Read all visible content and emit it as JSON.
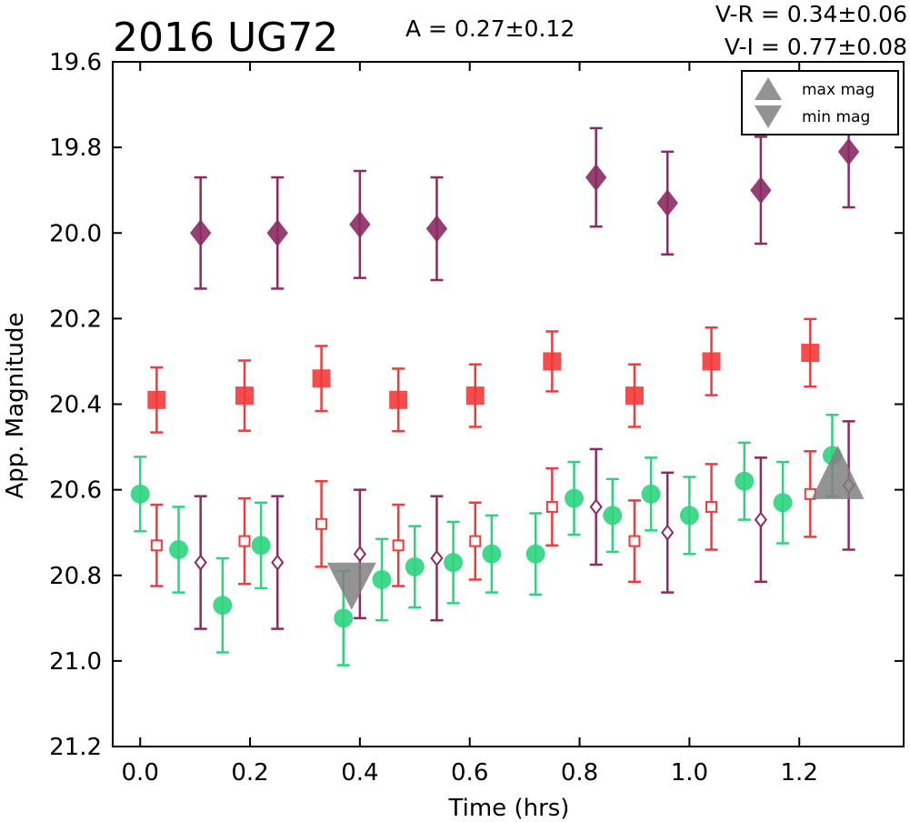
{
  "chart_data": {
    "type": "scatter",
    "title": "2016 UG72",
    "amplitude_text": "A  = 0.27±0.12",
    "color_index_lines": [
      "V-R = 0.34±0.06",
      "V-I  = 0.77±0.08"
    ],
    "xlabel": "Time (hrs)",
    "ylabel": "App. Magnitude",
    "xlim": [
      -0.05,
      1.39
    ],
    "ylim": [
      19.6,
      21.2
    ],
    "y_inverted": true,
    "xticks": [
      "0.0",
      "0.2",
      "0.4",
      "0.6",
      "0.8",
      "1.0",
      "1.2"
    ],
    "yticks": [
      "19.6",
      "19.8",
      "20.0",
      "20.2",
      "20.4",
      "20.6",
      "20.8",
      "21.0",
      "21.2"
    ],
    "grid": false,
    "legend": {
      "position": "top-right",
      "entries": [
        {
          "label": "max mag",
          "marker": "triangle-up",
          "color": "#808080"
        },
        {
          "label": "min mag",
          "marker": "triangle-down",
          "color": "#808080"
        }
      ]
    },
    "series": [
      {
        "marker": "square",
        "filled": true,
        "color": "#f23a3a",
        "points": [
          {
            "x": 0.03,
            "y": 20.39,
            "err": 0.076
          },
          {
            "x": 0.19,
            "y": 20.38,
            "err": 0.082
          },
          {
            "x": 0.33,
            "y": 20.34,
            "err": 0.076
          },
          {
            "x": 0.47,
            "y": 20.39,
            "err": 0.073
          },
          {
            "x": 0.61,
            "y": 20.38,
            "err": 0.073
          },
          {
            "x": 0.75,
            "y": 20.3,
            "err": 0.07
          },
          {
            "x": 0.9,
            "y": 20.38,
            "err": 0.073
          },
          {
            "x": 1.04,
            "y": 20.3,
            "err": 0.079
          },
          {
            "x": 1.22,
            "y": 20.28,
            "err": 0.079
          }
        ]
      },
      {
        "marker": "diamond",
        "filled": true,
        "color": "#8b2a63",
        "points": [
          {
            "x": 0.11,
            "y": 20.0,
            "err": 0.13
          },
          {
            "x": 0.25,
            "y": 20.0,
            "err": 0.13
          },
          {
            "x": 0.4,
            "y": 19.98,
            "err": 0.125
          },
          {
            "x": 0.54,
            "y": 19.99,
            "err": 0.12
          },
          {
            "x": 0.83,
            "y": 19.87,
            "err": 0.115
          },
          {
            "x": 0.96,
            "y": 19.93,
            "err": 0.12
          },
          {
            "x": 1.13,
            "y": 19.9,
            "err": 0.125
          },
          {
            "x": 1.29,
            "y": 19.81,
            "err": 0.13
          }
        ]
      },
      {
        "marker": "circle",
        "filled": true,
        "color": "#2dd47e",
        "points": [
          {
            "x": 0.0,
            "y": 20.61,
            "err": 0.087
          },
          {
            "x": 0.07,
            "y": 20.74,
            "err": 0.1
          },
          {
            "x": 0.15,
            "y": 20.87,
            "err": 0.11
          },
          {
            "x": 0.22,
            "y": 20.73,
            "err": 0.1
          },
          {
            "x": 0.37,
            "y": 20.9,
            "err": 0.11
          },
          {
            "x": 0.44,
            "y": 20.81,
            "err": 0.095
          },
          {
            "x": 0.5,
            "y": 20.78,
            "err": 0.095
          },
          {
            "x": 0.57,
            "y": 20.77,
            "err": 0.095
          },
          {
            "x": 0.64,
            "y": 20.75,
            "err": 0.09
          },
          {
            "x": 0.72,
            "y": 20.75,
            "err": 0.095
          },
          {
            "x": 0.79,
            "y": 20.62,
            "err": 0.085
          },
          {
            "x": 0.86,
            "y": 20.66,
            "err": 0.085
          },
          {
            "x": 0.93,
            "y": 20.61,
            "err": 0.085
          },
          {
            "x": 1.0,
            "y": 20.66,
            "err": 0.09
          },
          {
            "x": 1.1,
            "y": 20.58,
            "err": 0.09
          },
          {
            "x": 1.17,
            "y": 20.63,
            "err": 0.095
          },
          {
            "x": 1.26,
            "y": 20.52,
            "err": 0.095
          }
        ]
      },
      {
        "marker": "square",
        "filled": false,
        "color": "#f23a3a",
        "points": [
          {
            "x": 0.03,
            "y": 20.73,
            "err": 0.095
          },
          {
            "x": 0.19,
            "y": 20.72,
            "err": 0.1
          },
          {
            "x": 0.33,
            "y": 20.68,
            "err": 0.1
          },
          {
            "x": 0.47,
            "y": 20.73,
            "err": 0.095
          },
          {
            "x": 0.61,
            "y": 20.72,
            "err": 0.09
          },
          {
            "x": 0.75,
            "y": 20.64,
            "err": 0.09
          },
          {
            "x": 0.9,
            "y": 20.72,
            "err": 0.095
          },
          {
            "x": 1.04,
            "y": 20.64,
            "err": 0.1
          },
          {
            "x": 1.22,
            "y": 20.61,
            "err": 0.1
          }
        ]
      },
      {
        "marker": "diamond",
        "filled": false,
        "color": "#8b2a63",
        "points": [
          {
            "x": 0.11,
            "y": 20.77,
            "err": 0.155
          },
          {
            "x": 0.25,
            "y": 20.77,
            "err": 0.155
          },
          {
            "x": 0.4,
            "y": 20.75,
            "err": 0.15
          },
          {
            "x": 0.54,
            "y": 20.76,
            "err": 0.145
          },
          {
            "x": 0.83,
            "y": 20.64,
            "err": 0.135
          },
          {
            "x": 0.96,
            "y": 20.7,
            "err": 0.14
          },
          {
            "x": 1.13,
            "y": 20.67,
            "err": 0.145
          },
          {
            "x": 1.29,
            "y": 20.59,
            "err": 0.15
          }
        ]
      }
    ],
    "extrema": [
      {
        "label": "min mag",
        "marker": "triangle-down",
        "x": 0.385,
        "y": 20.8,
        "color": "#808080"
      },
      {
        "label": "max mag",
        "marker": "triangle-up",
        "x": 1.27,
        "y": 20.59,
        "color": "#808080"
      }
    ]
  }
}
